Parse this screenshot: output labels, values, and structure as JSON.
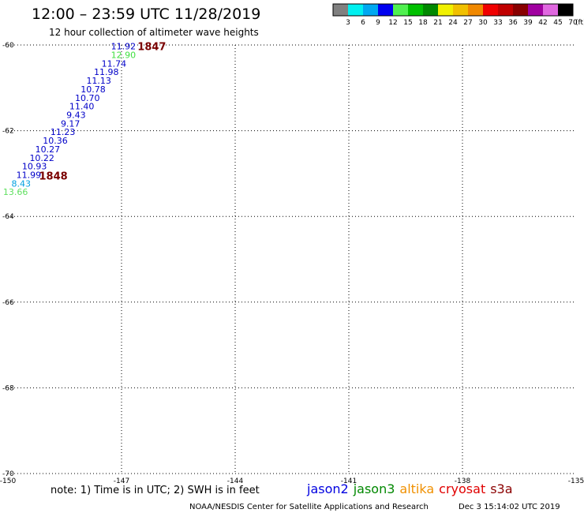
{
  "chart_data": {
    "type": "scatter",
    "title": "12:00 – 23:59 UTC 11/28/2019",
    "subtitle": "12 hour collection of altimeter wave heights",
    "xlim": [
      -150,
      -135
    ],
    "ylim": [
      -70,
      -60
    ],
    "x_ticks": [
      {
        "value": -150,
        "label": "-150"
      },
      {
        "value": -147,
        "label": "-147"
      },
      {
        "value": -144,
        "label": "-144"
      },
      {
        "value": -141,
        "label": "-141"
      },
      {
        "value": -138,
        "label": "-138"
      },
      {
        "value": -135,
        "label": "-135"
      }
    ],
    "y_ticks": [
      {
        "value": -60,
        "label": "-60"
      },
      {
        "value": -62,
        "label": "-62"
      },
      {
        "value": -64,
        "label": "-64"
      },
      {
        "value": -66,
        "label": "-66"
      },
      {
        "value": -68,
        "label": "-68"
      },
      {
        "value": -70,
        "label": "-70"
      }
    ],
    "grid": true,
    "colorbar": {
      "unit": "(ft)",
      "colors": [
        "#808080",
        "#00f0f0",
        "#00a8f0",
        "#0000f0",
        "#50f050",
        "#00c000",
        "#008800",
        "#f0f000",
        "#f0c000",
        "#f08800",
        "#f00000",
        "#c00000",
        "#880000",
        "#a000a0",
        "#e068e0",
        "#000000"
      ],
      "labels": [
        "3",
        "6",
        "9",
        "12",
        "15",
        "18",
        "21",
        "24",
        "27",
        "30",
        "33",
        "36",
        "39",
        "42",
        "45",
        "70"
      ]
    },
    "points": [
      {
        "lon": -146.95,
        "lat": -60.03,
        "value": "11.92",
        "color": "#0000c8"
      },
      {
        "lon": -146.95,
        "lat": -60.23,
        "value": "12.90",
        "color": "#40e040"
      },
      {
        "lon": -147.2,
        "lat": -60.43,
        "value": "11.74",
        "color": "#0000c8"
      },
      {
        "lon": -147.4,
        "lat": -60.63,
        "value": "11.98",
        "color": "#0000c8"
      },
      {
        "lon": -147.6,
        "lat": -60.83,
        "value": "11.13",
        "color": "#0000c8"
      },
      {
        "lon": -147.75,
        "lat": -61.03,
        "value": "10.78",
        "color": "#0000c8"
      },
      {
        "lon": -147.9,
        "lat": -61.23,
        "value": "10.70",
        "color": "#0000c8"
      },
      {
        "lon": -148.05,
        "lat": -61.43,
        "value": "11.40",
        "color": "#0000c8"
      },
      {
        "lon": -148.2,
        "lat": -61.63,
        "value": "9.43",
        "color": "#0000c8"
      },
      {
        "lon": -148.35,
        "lat": -61.83,
        "value": "9.17",
        "color": "#0000c8"
      },
      {
        "lon": -148.55,
        "lat": -62.03,
        "value": "11.23",
        "color": "#0000c8"
      },
      {
        "lon": -148.75,
        "lat": -62.23,
        "value": "10.36",
        "color": "#0000c8"
      },
      {
        "lon": -148.95,
        "lat": -62.43,
        "value": "10.27",
        "color": "#0000c8"
      },
      {
        "lon": -149.1,
        "lat": -62.63,
        "value": "10.22",
        "color": "#0000c8"
      },
      {
        "lon": -149.3,
        "lat": -62.83,
        "value": "10.93",
        "color": "#0000c8"
      },
      {
        "lon": -149.45,
        "lat": -63.03,
        "value": "11.99",
        "color": "#0000c8"
      },
      {
        "lon": -149.65,
        "lat": -63.23,
        "value": "8.43",
        "color": "#00a0e0"
      },
      {
        "lon": -149.8,
        "lat": -63.43,
        "value": "13.66",
        "color": "#60e060"
      }
    ],
    "pass_labels": [
      {
        "lon": -146.2,
        "lat": -60.03,
        "text": "1847"
      },
      {
        "lon": -148.8,
        "lat": -63.05,
        "text": "1848"
      }
    ]
  },
  "note": "note: 1) Time is in UTC; 2) SWH is in feet",
  "satellites": [
    {
      "name": "jason2",
      "color": "#0000e0"
    },
    {
      "name": "jason3",
      "color": "#008800"
    },
    {
      "name": "altika",
      "color": "#f09000"
    },
    {
      "name": "cryosat",
      "color": "#e00000"
    },
    {
      "name": "s3a",
      "color": "#8b0000"
    }
  ],
  "footer": {
    "credit": "NOAA/NESDIS Center for Satellite Applications and Research",
    "timestamp": "Dec  3 15:14:02 UTC 2019"
  }
}
